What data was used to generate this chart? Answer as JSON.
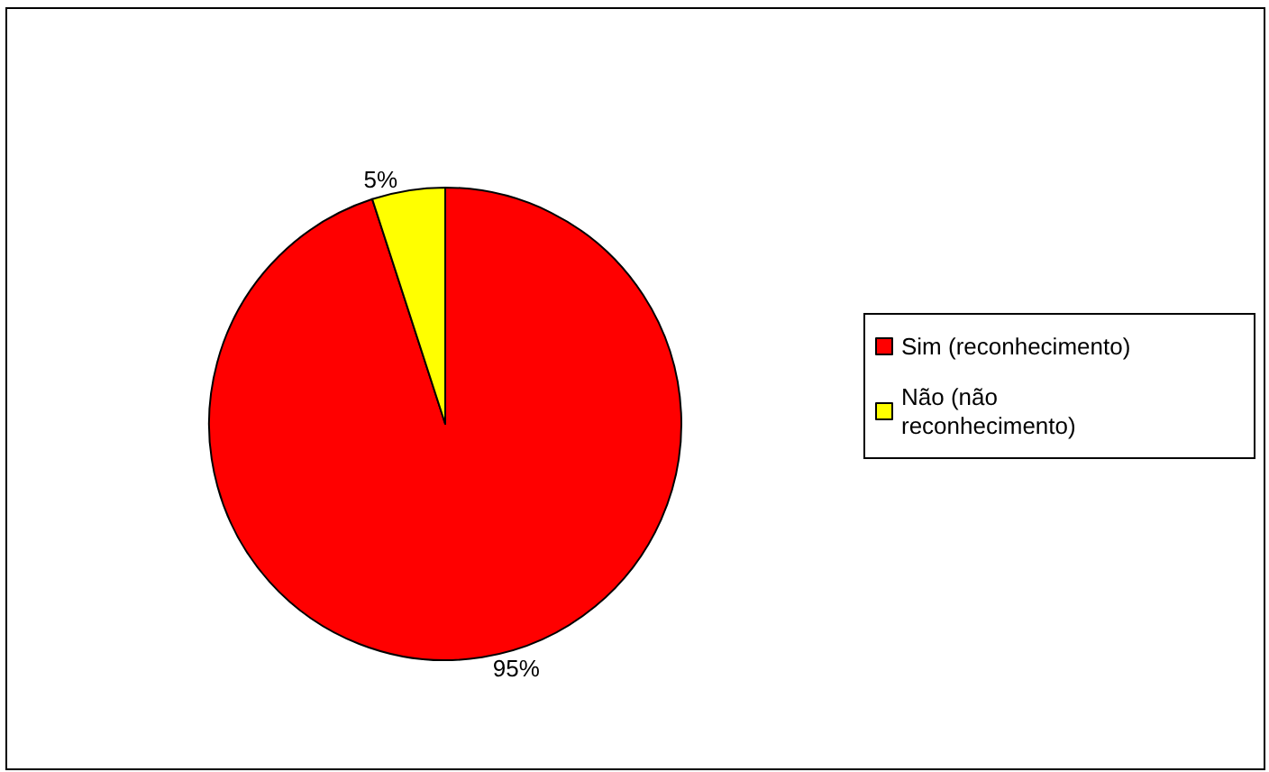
{
  "chart_data": {
    "type": "pie",
    "categories": [
      "Sim (reconhecimento)",
      "Não (não reconhecimento)"
    ],
    "values": [
      95,
      5
    ],
    "colors": [
      "#ff0000",
      "#ffff00"
    ],
    "value_labels": [
      "95%",
      "5%"
    ],
    "legend": "right"
  }
}
